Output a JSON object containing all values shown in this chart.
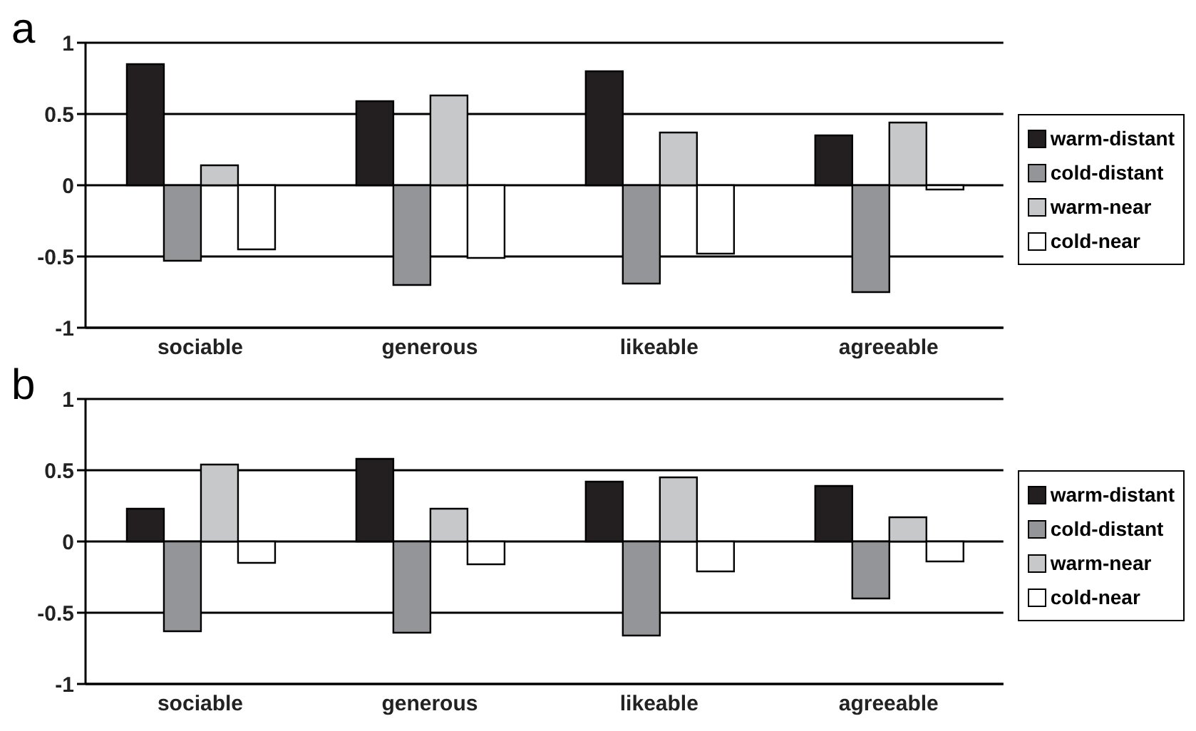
{
  "chart_data": [
    {
      "type": "bar",
      "title": "a",
      "categories": [
        "sociable",
        "generous",
        "likeable",
        "agreeable"
      ],
      "series": [
        {
          "name": "warm-distant",
          "color": "#231f20",
          "values": [
            0.85,
            0.59,
            0.8,
            0.35
          ]
        },
        {
          "name": "cold-distant",
          "color": "#939598",
          "values": [
            -0.53,
            -0.7,
            -0.69,
            -0.75
          ]
        },
        {
          "name": "warm-near",
          "color": "#c7c8ca",
          "values": [
            0.14,
            0.63,
            0.37,
            0.44
          ]
        },
        {
          "name": "cold-near",
          "color": "#ffffff",
          "values": [
            -0.45,
            -0.51,
            -0.48,
            -0.03
          ]
        }
      ],
      "ylim": [
        -1,
        1
      ],
      "yticks": [
        -1,
        -0.5,
        0,
        0.5,
        1
      ],
      "grid": "y",
      "legend": "right"
    },
    {
      "type": "bar",
      "title": "b",
      "categories": [
        "sociable",
        "generous",
        "likeable",
        "agreeable"
      ],
      "series": [
        {
          "name": "warm-distant",
          "color": "#231f20",
          "values": [
            0.23,
            0.58,
            0.42,
            0.39
          ]
        },
        {
          "name": "cold-distant",
          "color": "#939598",
          "values": [
            -0.63,
            -0.64,
            -0.66,
            -0.4
          ]
        },
        {
          "name": "warm-near",
          "color": "#c7c8ca",
          "values": [
            0.54,
            0.23,
            0.45,
            0.17
          ]
        },
        {
          "name": "cold-near",
          "color": "#ffffff",
          "values": [
            -0.15,
            -0.16,
            -0.21,
            -0.14
          ]
        }
      ],
      "ylim": [
        -1,
        1
      ],
      "yticks": [
        -1,
        -0.5,
        0,
        0.5,
        1
      ],
      "grid": "y",
      "legend": "right"
    }
  ]
}
